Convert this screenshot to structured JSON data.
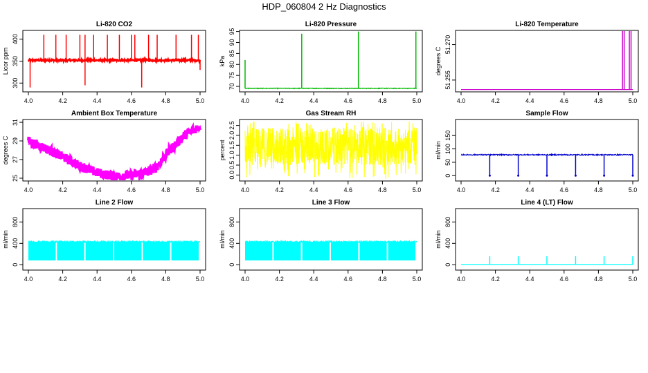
{
  "figure": {
    "title": "HDP_060804  2 Hz Diagnostics",
    "background": "#ffffff"
  },
  "chart_data": [
    {
      "id": "co2",
      "type": "line",
      "title": "Li-820 CO2",
      "ylabel": "Licor ppm",
      "color": "#ff0000",
      "xlim": [
        4.0,
        5.0
      ],
      "ylim": [
        280,
        420
      ],
      "xticks": [
        4.0,
        4.2,
        4.4,
        4.6,
        4.8,
        5.0
      ],
      "xtick_labels": [
        "4.0",
        "4.2",
        "4.4",
        "4.6",
        "4.8",
        "5.0"
      ],
      "yticks": [
        300,
        350,
        400
      ],
      "ytick_labels": [
        "300",
        "350",
        "400"
      ],
      "baseline": 352,
      "noise": 2,
      "spikes": [
        {
          "x": 4.09,
          "y": 410
        },
        {
          "x": 4.16,
          "y": 410
        },
        {
          "x": 4.22,
          "y": 410
        },
        {
          "x": 4.3,
          "y": 410
        },
        {
          "x": 4.33,
          "y": 410
        },
        {
          "x": 4.38,
          "y": 410
        },
        {
          "x": 4.46,
          "y": 410
        },
        {
          "x": 4.53,
          "y": 410
        },
        {
          "x": 4.6,
          "y": 410
        },
        {
          "x": 4.62,
          "y": 410
        },
        {
          "x": 4.7,
          "y": 410
        },
        {
          "x": 4.75,
          "y": 410
        },
        {
          "x": 4.86,
          "y": 410
        },
        {
          "x": 4.95,
          "y": 410
        },
        {
          "x": 4.99,
          "y": 410
        },
        {
          "x": 4.33,
          "y": 295
        },
        {
          "x": 4.66,
          "y": 290
        },
        {
          "x": 4.01,
          "y": 290
        },
        {
          "x": 5.0,
          "y": 330
        }
      ]
    },
    {
      "id": "pressure",
      "type": "line",
      "title": "Li-820 Pressure",
      "ylabel": "kPa",
      "color": "#00bb00",
      "xlim": [
        4.0,
        5.0
      ],
      "ylim": [
        67.5,
        95.5
      ],
      "xticks": [
        4.0,
        4.2,
        4.4,
        4.6,
        4.8,
        5.0
      ],
      "xtick_labels": [
        "4.0",
        "4.2",
        "4.4",
        "4.6",
        "4.8",
        "5.0"
      ],
      "yticks": [
        70,
        75,
        80,
        85,
        90,
        95
      ],
      "ytick_labels": [
        "70",
        "75",
        "80",
        "85",
        "90",
        "95"
      ],
      "baseline": 69.1,
      "noise": 0.15,
      "spikes": [
        {
          "x": 4.0,
          "y": 82
        },
        {
          "x": 4.33,
          "y": 94
        },
        {
          "x": 4.66,
          "y": 95
        },
        {
          "x": 4.995,
          "y": 95
        }
      ]
    },
    {
      "id": "licor_temp",
      "type": "line",
      "title": "Li-820 Temperature",
      "ylabel": "degrees C",
      "color": "#cc00cc",
      "xlim": [
        4.0,
        5.0
      ],
      "ylim": [
        51.25,
        51.276
      ],
      "xticks": [
        4.0,
        4.2,
        4.4,
        4.6,
        4.8,
        5.0
      ],
      "xtick_labels": [
        "4.0",
        "4.2",
        "4.4",
        "4.6",
        "4.8",
        "5.0"
      ],
      "yticks": [
        51.255,
        51.27
      ],
      "ytick_labels": [
        "51.255",
        "51.270"
      ],
      "baseline": 51.251,
      "noise": 0,
      "spikes": [
        {
          "x": 4.94,
          "y": 51.276
        },
        {
          "x": 4.95,
          "y": 51.276
        },
        {
          "x": 4.98,
          "y": 51.276
        },
        {
          "x": 4.99,
          "y": 51.276
        }
      ]
    },
    {
      "id": "box_temp",
      "type": "line",
      "title": "Ambient Box Temperature",
      "ylabel": "degrees C",
      "color": "#ff00ff",
      "xlim": [
        4.0,
        5.0
      ],
      "ylim": [
        24.7,
        31.3
      ],
      "xticks": [
        4.0,
        4.2,
        4.4,
        4.6,
        4.8,
        5.0
      ],
      "xtick_labels": [
        "4.0",
        "4.2",
        "4.4",
        "4.6",
        "4.8",
        "5.0"
      ],
      "yticks": [
        25,
        27,
        29,
        31
      ],
      "ytick_labels": [
        "25",
        "27",
        "29",
        "31"
      ],
      "x": [
        4.0,
        4.1,
        4.2,
        4.3,
        4.4,
        4.5,
        4.6,
        4.7,
        4.75,
        4.8,
        4.9,
        5.0
      ],
      "y": [
        29.0,
        28.2,
        27.3,
        26.3,
        25.6,
        25.2,
        25.3,
        25.7,
        26.3,
        27.5,
        29.5,
        30.6
      ],
      "band": 0.5
    },
    {
      "id": "rh",
      "type": "line",
      "title": "Gas Stream RH",
      "ylabel": "percent",
      "color": "#ffff00",
      "xlim": [
        4.0,
        5.0
      ],
      "ylim": [
        -0.3,
        2.8
      ],
      "xticks": [
        4.0,
        4.2,
        4.4,
        4.6,
        4.8,
        5.0
      ],
      "xtick_labels": [
        "4.0",
        "4.2",
        "4.4",
        "4.6",
        "4.8",
        "5.0"
      ],
      "yticks": [
        0.0,
        0.5,
        1.0,
        1.5,
        2.0,
        2.5
      ],
      "ytick_labels": [
        "0.0",
        "0.5",
        "1.0",
        "1.5",
        "2.0",
        "2.5"
      ],
      "band_low": 0.5,
      "band_high": 2.4,
      "min": -0.2,
      "max": 2.7
    },
    {
      "id": "sample_flow",
      "type": "line",
      "title": "Sample Flow",
      "ylabel": "ml/min",
      "color": "#0000cc",
      "xlim": [
        4.0,
        5.0
      ],
      "ylim": [
        -20,
        210
      ],
      "xticks": [
        4.0,
        4.2,
        4.4,
        4.6,
        4.8,
        5.0
      ],
      "xtick_labels": [
        "4.0",
        "4.2",
        "4.4",
        "4.6",
        "4.8",
        "5.0"
      ],
      "yticks": [
        0,
        50,
        100,
        150
      ],
      "ytick_labels": [
        "0",
        "50",
        "100",
        "150"
      ],
      "baseline": 78,
      "noise": 2,
      "drops": [
        4.167,
        4.333,
        4.5,
        4.667,
        4.833,
        5.0
      ],
      "drop_to": 0
    },
    {
      "id": "line2",
      "type": "line",
      "title": "Line 2 Flow",
      "ylabel": "ml/min",
      "color": "#00ffff",
      "xlim": [
        4.0,
        5.0
      ],
      "ylim": [
        -100,
        1050
      ],
      "xticks": [
        4.0,
        4.2,
        4.4,
        4.6,
        4.8,
        5.0
      ],
      "xtick_labels": [
        "4.0",
        "4.2",
        "4.4",
        "4.6",
        "4.8",
        "5.0"
      ],
      "yticks": [
        0,
        400,
        800
      ],
      "ytick_labels": [
        "0",
        "400",
        "800"
      ],
      "band_low": 80,
      "band_high": 430,
      "gaps": [
        4.167,
        4.333,
        4.5,
        4.667,
        4.833,
        5.0
      ]
    },
    {
      "id": "line3",
      "type": "line",
      "title": "Line 3 Flow",
      "ylabel": "ml/min",
      "color": "#00ffff",
      "xlim": [
        4.0,
        5.0
      ],
      "ylim": [
        -100,
        1050
      ],
      "xticks": [
        4.0,
        4.2,
        4.4,
        4.6,
        4.8,
        5.0
      ],
      "xtick_labels": [
        "4.0",
        "4.2",
        "4.4",
        "4.6",
        "4.8",
        "5.0"
      ],
      "yticks": [
        0,
        400,
        800
      ],
      "ytick_labels": [
        "0",
        "400",
        "800"
      ],
      "band_low": 80,
      "band_high": 430,
      "gaps": [
        4.167,
        4.333,
        4.5,
        4.667,
        4.833,
        5.0
      ]
    },
    {
      "id": "line4",
      "type": "line",
      "title": "Line 4 (LT) Flow",
      "ylabel": "ml/min",
      "color": "#00ffff",
      "xlim": [
        4.0,
        5.0
      ],
      "ylim": [
        -100,
        1050
      ],
      "xticks": [
        4.0,
        4.2,
        4.4,
        4.6,
        4.8,
        5.0
      ],
      "xtick_labels": [
        "4.0",
        "4.2",
        "4.4",
        "4.6",
        "4.8",
        "5.0"
      ],
      "yticks": [
        0,
        400,
        800
      ],
      "ytick_labels": [
        "0",
        "400",
        "800"
      ],
      "baseline": 5,
      "noise": 0,
      "spikes": [
        {
          "x": 4.167,
          "y": 160
        },
        {
          "x": 4.333,
          "y": 160
        },
        {
          "x": 4.5,
          "y": 160
        },
        {
          "x": 4.667,
          "y": 160
        },
        {
          "x": 4.833,
          "y": 160
        },
        {
          "x": 5.0,
          "y": 160
        }
      ]
    }
  ]
}
